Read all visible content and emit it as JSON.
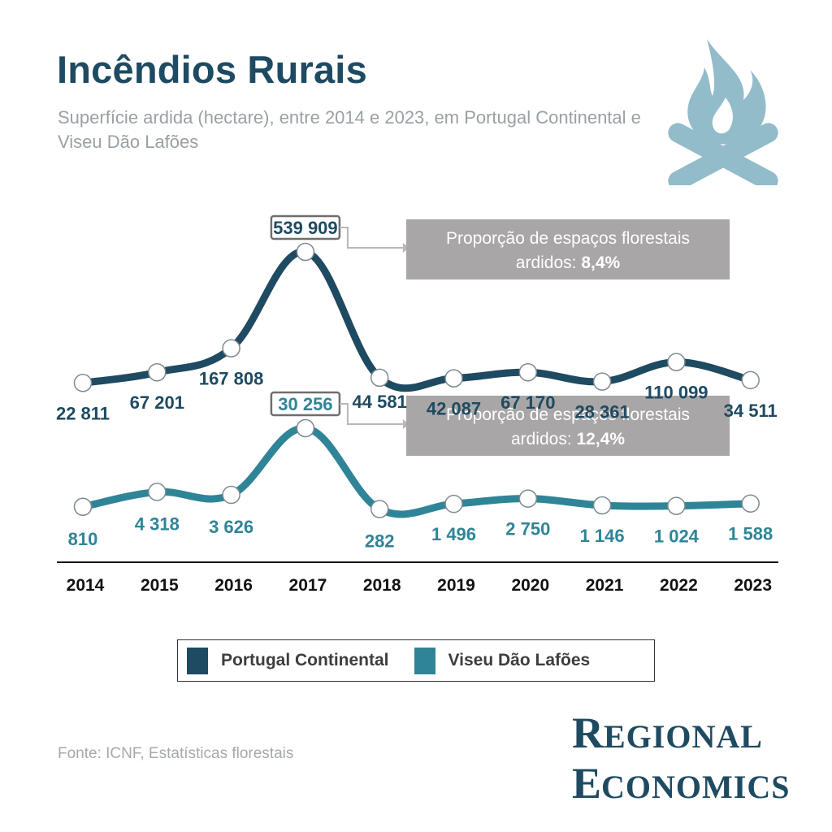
{
  "header": {
    "title": "Incêndios Rurais",
    "subtitle": "Superfície ardida (hectare), entre 2014 e 2023, em Portugal Continental e Viseu Dão Lafões"
  },
  "icon": "campfire-icon",
  "colors": {
    "portugal": "#1e4a62",
    "viseu": "#2f8597",
    "icon": "#93bcca",
    "callout": "#a8a6a6",
    "axis": "#111111"
  },
  "chart_data": {
    "type": "line",
    "x": [
      "2014",
      "2015",
      "2016",
      "2017",
      "2018",
      "2019",
      "2020",
      "2021",
      "2022",
      "2023"
    ],
    "series": [
      {
        "name": "Portugal Continental",
        "values": [
          22811,
          67201,
          167808,
          539909,
          44581,
          42087,
          67170,
          28361,
          110099,
          34511
        ],
        "labels": [
          "22 811",
          "67 201",
          "167 808",
          "539 909",
          "44 581",
          "42 087",
          "67 170",
          "28 361",
          "110 099",
          "34 511"
        ]
      },
      {
        "name": "Viseu Dão Lafões",
        "values": [
          810,
          4318,
          3626,
          30256,
          282,
          1496,
          2750,
          1146,
          1024,
          1588
        ],
        "labels": [
          "810",
          "4 318",
          "3 626",
          "30 256",
          "282",
          "1 496",
          "2 750",
          "1 146",
          "1 024",
          "1 588"
        ]
      }
    ],
    "annotations": [
      {
        "series": "Portugal Continental",
        "x": "2017",
        "line1": "Proporção de espaços florestais",
        "line2": "ardidos: ",
        "value": "8,4%"
      },
      {
        "series": "Viseu Dão Lafões",
        "x": "2017",
        "line1": "Proporção de espaços florestais",
        "line2": "ardidos: ",
        "value": "12,4%"
      }
    ],
    "legend_position": "bottom",
    "grid": false
  },
  "footer": {
    "source": "Fonte: ICNF, Estatísticas florestais",
    "logo_line1": "Regional",
    "logo_line2": "Economics"
  }
}
